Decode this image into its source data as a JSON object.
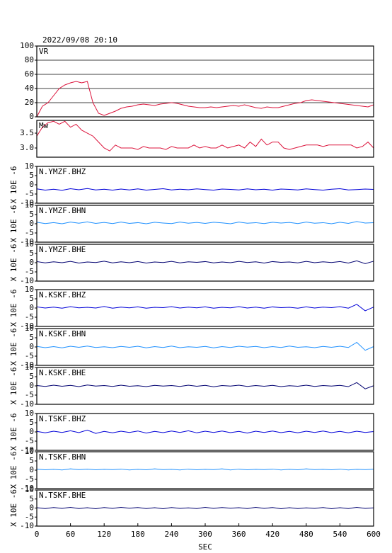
{
  "chart_data": [
    {
      "type": "line",
      "title": "2022/09/08 20:10",
      "label": "VR",
      "color": "#dc143c",
      "grid": true,
      "xlim": [
        0,
        600
      ],
      "ylim": [
        0,
        100
      ],
      "yticks": [
        0,
        20,
        40,
        60,
        80,
        100
      ],
      "x": [
        0,
        10,
        20,
        30,
        40,
        50,
        60,
        70,
        80,
        90,
        100,
        110,
        120,
        130,
        140,
        150,
        160,
        170,
        180,
        190,
        200,
        210,
        220,
        230,
        240,
        250,
        260,
        270,
        280,
        290,
        300,
        310,
        320,
        330,
        340,
        350,
        360,
        370,
        380,
        390,
        400,
        410,
        420,
        430,
        440,
        450,
        460,
        470,
        480,
        490,
        500,
        510,
        520,
        530,
        540,
        550,
        560,
        570,
        580,
        590,
        600
      ],
      "values": [
        0,
        15,
        20,
        30,
        40,
        45,
        48,
        50,
        48,
        50,
        20,
        5,
        2,
        5,
        8,
        12,
        14,
        15,
        17,
        18,
        17,
        16,
        18,
        19,
        20,
        19,
        17,
        15,
        14,
        13,
        13,
        14,
        13,
        14,
        15,
        16,
        15,
        17,
        15,
        13,
        12,
        14,
        13,
        13,
        15,
        17,
        19,
        20,
        23,
        24,
        23,
        22,
        21,
        20,
        19,
        18,
        17,
        16,
        15,
        14,
        17
      ]
    },
    {
      "type": "line",
      "label": "Mw",
      "color": "#dc143c",
      "xlim": [
        0,
        600
      ],
      "ylim": [
        2.69,
        3.93
      ],
      "yticks": [
        {
          "value": 3,
          "label": "3.0"
        },
        3.5
      ],
      "x": [
        0,
        10,
        20,
        30,
        40,
        50,
        60,
        70,
        80,
        90,
        100,
        110,
        120,
        130,
        140,
        150,
        160,
        170,
        180,
        190,
        200,
        210,
        220,
        230,
        240,
        250,
        260,
        270,
        280,
        290,
        300,
        310,
        320,
        330,
        340,
        350,
        360,
        370,
        380,
        390,
        400,
        410,
        420,
        430,
        440,
        450,
        460,
        470,
        480,
        490,
        500,
        510,
        520,
        530,
        540,
        550,
        560,
        570,
        580,
        590,
        600
      ],
      "values": [
        3.4,
        3.7,
        3.85,
        3.9,
        3.8,
        3.9,
        3.7,
        3.8,
        3.6,
        3.5,
        3.4,
        3.2,
        3.0,
        2.9,
        3.1,
        3.0,
        3.0,
        3.0,
        2.95,
        3.05,
        3.0,
        3.0,
        3.0,
        2.95,
        3.05,
        3.0,
        3.0,
        3.0,
        3.1,
        3.0,
        3.05,
        3.0,
        3.0,
        3.1,
        3.0,
        3.05,
        3.1,
        3.0,
        3.2,
        3.05,
        3.3,
        3.1,
        3.2,
        3.2,
        3.0,
        2.95,
        3.0,
        3.05,
        3.1,
        3.1,
        3.1,
        3.05,
        3.1,
        3.1,
        3.1,
        3.1,
        3.1,
        3.0,
        3.05,
        3.2,
        3.0
      ]
    },
    {
      "type": "line",
      "label": "N.YMZF.BHZ",
      "ylabel": "X 10E -6",
      "color": "#0000d8",
      "xlim": [
        0,
        600
      ],
      "ylim": [
        -10,
        10
      ],
      "yticks": [
        -10,
        -5,
        0,
        5,
        10
      ],
      "x": [
        0,
        15,
        30,
        45,
        60,
        75,
        90,
        105,
        120,
        135,
        150,
        165,
        180,
        195,
        210,
        225,
        240,
        255,
        270,
        285,
        300,
        315,
        330,
        345,
        360,
        375,
        390,
        405,
        420,
        435,
        450,
        465,
        480,
        495,
        510,
        525,
        540,
        555,
        570,
        585,
        600
      ],
      "values": [
        -2.2,
        -2.9,
        -2.4,
        -3.0,
        -2.1,
        -2.7,
        -2.0,
        -2.8,
        -2.4,
        -2.9,
        -2.3,
        -2.8,
        -2.2,
        -2.9,
        -2.5,
        -2.1,
        -2.8,
        -2.4,
        -2.7,
        -2.2,
        -2.6,
        -2.9,
        -2.3,
        -2.5,
        -2.8,
        -2.2,
        -2.7,
        -2.4,
        -2.9,
        -2.3,
        -2.5,
        -2.8,
        -2.2,
        -2.6,
        -2.9,
        -2.4,
        -2.1,
        -2.8,
        -2.6,
        -2.3,
        -2.5
      ]
    },
    {
      "type": "line",
      "label": "N.YMZF.BHN",
      "ylabel": "X 10E -6",
      "color": "#1e90ff",
      "xlim": [
        0,
        600
      ],
      "ylim": [
        -10,
        10
      ],
      "yticks": [
        -10,
        -5,
        0,
        5,
        10
      ],
      "x": [
        0,
        15,
        30,
        45,
        60,
        75,
        90,
        105,
        120,
        135,
        150,
        165,
        180,
        195,
        210,
        225,
        240,
        255,
        270,
        285,
        300,
        315,
        330,
        345,
        360,
        375,
        390,
        405,
        420,
        435,
        450,
        465,
        480,
        495,
        510,
        525,
        540,
        555,
        570,
        585,
        600
      ],
      "values": [
        0.8,
        0.1,
        0.6,
        0.0,
        0.9,
        0.3,
        1.0,
        0.2,
        0.7,
        0.1,
        0.9,
        0.2,
        0.6,
        0.0,
        0.8,
        0.4,
        0.1,
        0.9,
        0.3,
        0.7,
        0.2,
        0.8,
        0.5,
        0.0,
        0.9,
        0.3,
        0.6,
        0.1,
        0.8,
        0.4,
        0.7,
        0.1,
        0.9,
        0.3,
        0.6,
        0.0,
        0.8,
        0.2,
        1.2,
        0.4,
        0.6
      ]
    },
    {
      "type": "line",
      "label": "N.YMZF.BHE",
      "ylabel": "X 10E -6",
      "color": "#000070",
      "xlim": [
        0,
        600
      ],
      "ylim": [
        -10,
        10
      ],
      "yticks": [
        -10,
        -5,
        0,
        5,
        10
      ],
      "x": [
        0,
        15,
        30,
        45,
        60,
        75,
        90,
        105,
        120,
        135,
        150,
        165,
        180,
        195,
        210,
        225,
        240,
        255,
        270,
        285,
        300,
        315,
        330,
        345,
        360,
        375,
        390,
        405,
        420,
        435,
        450,
        465,
        480,
        495,
        510,
        525,
        540,
        555,
        570,
        585,
        600
      ],
      "values": [
        0.6,
        -0.1,
        0.5,
        0.0,
        0.7,
        -0.2,
        0.4,
        0.1,
        0.8,
        -0.1,
        0.5,
        0.0,
        0.6,
        -0.2,
        0.4,
        0.1,
        0.7,
        -0.1,
        0.5,
        0.2,
        0.6,
        -0.1,
        0.4,
        0.0,
        0.7,
        0.1,
        0.5,
        -0.2,
        0.6,
        0.2,
        0.4,
        -0.1,
        0.7,
        0.0,
        0.5,
        0.1,
        0.6,
        -0.2,
        1.0,
        -0.5,
        0.8
      ]
    },
    {
      "type": "line",
      "label": "N.KSKF.BHZ",
      "ylabel": "X 10E -6",
      "color": "#0000d8",
      "xlim": [
        0,
        600
      ],
      "ylim": [
        -10,
        10
      ],
      "yticks": [
        -10,
        -5,
        0,
        5,
        10
      ],
      "x": [
        0,
        15,
        30,
        45,
        60,
        75,
        90,
        105,
        120,
        135,
        150,
        165,
        180,
        195,
        210,
        225,
        240,
        255,
        270,
        285,
        300,
        315,
        330,
        345,
        360,
        375,
        390,
        405,
        420,
        435,
        450,
        465,
        480,
        495,
        510,
        525,
        540,
        555,
        570,
        585,
        600
      ],
      "values": [
        0.6,
        0.0,
        0.5,
        -0.1,
        0.7,
        0.1,
        0.4,
        0.0,
        0.8,
        -0.1,
        0.5,
        0.1,
        0.6,
        -0.1,
        0.4,
        0.2,
        0.7,
        0.0,
        0.5,
        0.1,
        0.6,
        -0.1,
        0.4,
        0.1,
        0.7,
        0.0,
        0.5,
        -0.1,
        0.6,
        0.2,
        0.4,
        -0.1,
        0.6,
        0.0,
        0.5,
        0.2,
        0.7,
        -0.1,
        2.0,
        -1.5,
        0.5
      ]
    },
    {
      "type": "line",
      "label": "N.KSKF.BHN",
      "ylabel": "X 10E -6",
      "color": "#1e90ff",
      "xlim": [
        0,
        600
      ],
      "ylim": [
        -10,
        10
      ],
      "yticks": [
        -10,
        -5,
        0,
        5,
        10
      ],
      "x": [
        0,
        15,
        30,
        45,
        60,
        75,
        90,
        105,
        120,
        135,
        150,
        165,
        180,
        195,
        210,
        225,
        240,
        255,
        270,
        285,
        300,
        315,
        330,
        345,
        360,
        375,
        390,
        405,
        420,
        435,
        450,
        465,
        480,
        495,
        510,
        525,
        540,
        555,
        570,
        585,
        600
      ],
      "values": [
        0.3,
        -0.4,
        0.2,
        -0.5,
        0.4,
        -0.2,
        0.5,
        -0.3,
        0.1,
        -0.4,
        0.3,
        -0.2,
        0.4,
        -0.5,
        0.2,
        -0.3,
        0.5,
        -0.4,
        0.1,
        -0.2,
        0.3,
        -0.5,
        0.2,
        -0.3,
        0.4,
        -0.1,
        0.3,
        -0.4,
        0.2,
        -0.3,
        0.5,
        -0.2,
        0.1,
        -0.4,
        0.3,
        -0.2,
        0.4,
        -0.3,
        2.5,
        -1.8,
        0.2
      ]
    },
    {
      "type": "line",
      "label": "N.KSKF.BHE",
      "ylabel": "X 10E -6",
      "color": "#000070",
      "xlim": [
        0,
        600
      ],
      "ylim": [
        -10,
        10
      ],
      "yticks": [
        -10,
        -5,
        0,
        5,
        10
      ],
      "x": [
        0,
        15,
        30,
        45,
        60,
        75,
        90,
        105,
        120,
        135,
        150,
        165,
        180,
        195,
        210,
        225,
        240,
        255,
        270,
        285,
        300,
        315,
        330,
        345,
        360,
        375,
        390,
        405,
        420,
        435,
        450,
        465,
        480,
        495,
        510,
        525,
        540,
        555,
        570,
        585,
        600
      ],
      "values": [
        0.2,
        -0.3,
        0.4,
        -0.2,
        0.3,
        -0.4,
        0.5,
        -0.1,
        0.2,
        -0.3,
        0.4,
        -0.2,
        0.1,
        -0.4,
        0.3,
        -0.1,
        0.2,
        -0.3,
        0.4,
        -0.2,
        0.3,
        -0.5,
        0.2,
        -0.1,
        0.4,
        -0.3,
        0.2,
        -0.2,
        0.3,
        -0.4,
        0.1,
        -0.2,
        0.4,
        -0.3,
        0.2,
        -0.1,
        0.3,
        -0.4,
        1.8,
        -1.6,
        0.1
      ]
    },
    {
      "type": "line",
      "label": "N.TSKF.BHZ",
      "ylabel": "X 10E -6",
      "color": "#0000d8",
      "xlim": [
        0,
        600
      ],
      "ylim": [
        -10,
        10
      ],
      "yticks": [
        -10,
        -5,
        0,
        5,
        10
      ],
      "x": [
        0,
        15,
        30,
        45,
        60,
        75,
        90,
        105,
        120,
        135,
        150,
        165,
        180,
        195,
        210,
        225,
        240,
        255,
        270,
        285,
        300,
        315,
        330,
        345,
        360,
        375,
        390,
        405,
        420,
        435,
        450,
        465,
        480,
        495,
        510,
        525,
        540,
        555,
        570,
        585,
        600
      ],
      "values": [
        0.3,
        -0.5,
        0.4,
        -0.3,
        0.6,
        -0.4,
        1.0,
        -0.8,
        0.3,
        -0.5,
        0.4,
        -0.3,
        0.5,
        -0.6,
        0.3,
        -0.4,
        0.5,
        -0.3,
        0.6,
        -0.5,
        0.4,
        -0.3,
        0.5,
        -0.4,
        0.3,
        -0.6,
        0.4,
        -0.3,
        0.5,
        -0.4,
        0.3,
        -0.5,
        0.4,
        -0.3,
        0.5,
        -0.4,
        0.3,
        -0.5,
        0.4,
        -0.3,
        0.2
      ]
    },
    {
      "type": "line",
      "label": "N.TSKF.BHN",
      "ylabel": "X 10E -6",
      "color": "#1e90ff",
      "xlim": [
        0,
        600
      ],
      "ylim": [
        -10,
        10
      ],
      "yticks": [
        -10,
        -5,
        0,
        5,
        10
      ],
      "x": [
        0,
        15,
        30,
        45,
        60,
        75,
        90,
        105,
        120,
        135,
        150,
        165,
        180,
        195,
        210,
        225,
        240,
        255,
        270,
        285,
        300,
        315,
        330,
        345,
        360,
        375,
        390,
        405,
        420,
        435,
        450,
        465,
        480,
        495,
        510,
        525,
        540,
        555,
        570,
        585,
        600
      ],
      "values": [
        0.6,
        0.2,
        0.5,
        0.1,
        0.7,
        0.3,
        0.6,
        0.2,
        0.5,
        0.3,
        0.6,
        0.1,
        0.5,
        0.2,
        0.7,
        0.3,
        0.5,
        0.1,
        0.6,
        0.2,
        0.5,
        0.3,
        0.7,
        0.1,
        0.6,
        0.2,
        0.5,
        0.3,
        0.6,
        0.1,
        0.5,
        0.2,
        0.7,
        0.3,
        0.5,
        0.2,
        0.6,
        0.1,
        0.5,
        0.3,
        0.6
      ]
    },
    {
      "type": "line",
      "label": "N.TSKF.BHE",
      "ylabel": "X 10E -6",
      "color": "#000070",
      "xlabel": "SEC",
      "xlim": [
        0,
        600
      ],
      "ylim": [
        -10,
        10
      ],
      "yticks": [
        -10,
        -5,
        0,
        5,
        10
      ],
      "xticks": [
        0,
        60,
        120,
        180,
        240,
        300,
        360,
        420,
        480,
        540,
        600
      ],
      "x": [
        0,
        15,
        30,
        45,
        60,
        75,
        90,
        105,
        120,
        135,
        150,
        165,
        180,
        195,
        210,
        225,
        240,
        255,
        270,
        285,
        300,
        315,
        330,
        345,
        360,
        375,
        390,
        405,
        420,
        435,
        450,
        465,
        480,
        495,
        510,
        525,
        540,
        555,
        570,
        585,
        600
      ],
      "values": [
        0.2,
        -0.3,
        0.3,
        -0.2,
        0.4,
        -0.3,
        0.2,
        -0.4,
        0.3,
        -0.2,
        0.4,
        -0.1,
        0.3,
        -0.3,
        0.2,
        -0.4,
        0.3,
        -0.2,
        0.1,
        -0.3,
        0.4,
        -0.2,
        0.3,
        -0.1,
        0.2,
        -0.3,
        0.4,
        -0.2,
        0.3,
        -0.4,
        0.2,
        -0.3,
        0.1,
        -0.2,
        0.3,
        -0.4,
        0.2,
        -0.3,
        0.4,
        -0.2,
        0.1
      ]
    }
  ]
}
